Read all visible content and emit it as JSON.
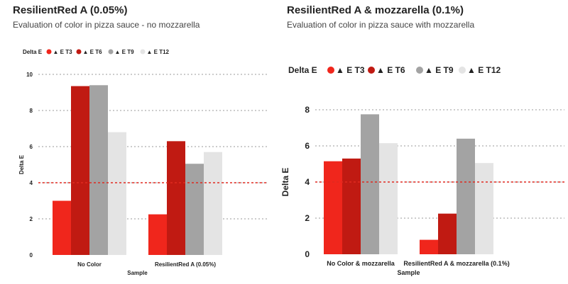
{
  "charts": [
    {
      "title": "ResilientRed A (0.05%)",
      "subtitle": "Evaluation of color in pizza sauce - no mozzarella",
      "chart_data": {
        "type": "bar",
        "title": "ResilientRed A (0.05%)",
        "subtitle": "Evaluation of color in pizza sauce - no mozzarella",
        "xlabel": "Sample",
        "ylabel": "Delta E",
        "legend_title": "Delta E",
        "legend_position": "top-left",
        "categories": [
          "No Color",
          "ResilientRed A (0.05%)"
        ],
        "series": [
          {
            "name": "▲ E T3",
            "values": [
              3.0,
              2.25
            ]
          },
          {
            "name": "▲ E T6",
            "values": [
              9.35,
              6.3
            ]
          },
          {
            "name": "▲ E T9",
            "values": [
              9.4,
              5.05
            ]
          },
          {
            "name": "▲ E T12",
            "values": [
              6.8,
              5.7
            ]
          }
        ],
        "ylim": [
          0,
          10
        ],
        "yticks": [
          0,
          2,
          4,
          6,
          8,
          10
        ],
        "grid": true,
        "threshold": 4
      }
    },
    {
      "title": "ResilientRed A & mozzarella (0.1%)",
      "subtitle": "Evaluation of color in pizza sauce with mozzarella",
      "chart_data": {
        "type": "bar",
        "title": "ResilientRed A & mozzarella (0.1%)",
        "subtitle": "Evaluation of color in pizza sauce with mozzarella",
        "xlabel": "Sample",
        "ylabel": "Delta E",
        "legend_title": "Delta E",
        "legend_position": "top-left",
        "categories": [
          "No Color & mozzarella",
          "ResilientRed A & mozzarella (0.1%)"
        ],
        "series": [
          {
            "name": "▲ E T3",
            "values": [
              5.15,
              0.8
            ]
          },
          {
            "name": "▲ E T6",
            "values": [
              5.3,
              2.25
            ]
          },
          {
            "name": "▲ E T9",
            "values": [
              7.75,
              6.4
            ]
          },
          {
            "name": "▲ E T12",
            "values": [
              6.15,
              5.05
            ]
          }
        ],
        "ylim": [
          0,
          8
        ],
        "yticks": [
          0,
          2,
          4,
          6,
          8
        ],
        "grid": true,
        "threshold": 4
      }
    }
  ],
  "colors": {
    "T3": "#f0261c",
    "T6": "#c01a12",
    "T9": "#a3a3a3",
    "T12": "#e4e4e4",
    "threshold": "#e02a20",
    "grid": "#9a9a9a"
  }
}
